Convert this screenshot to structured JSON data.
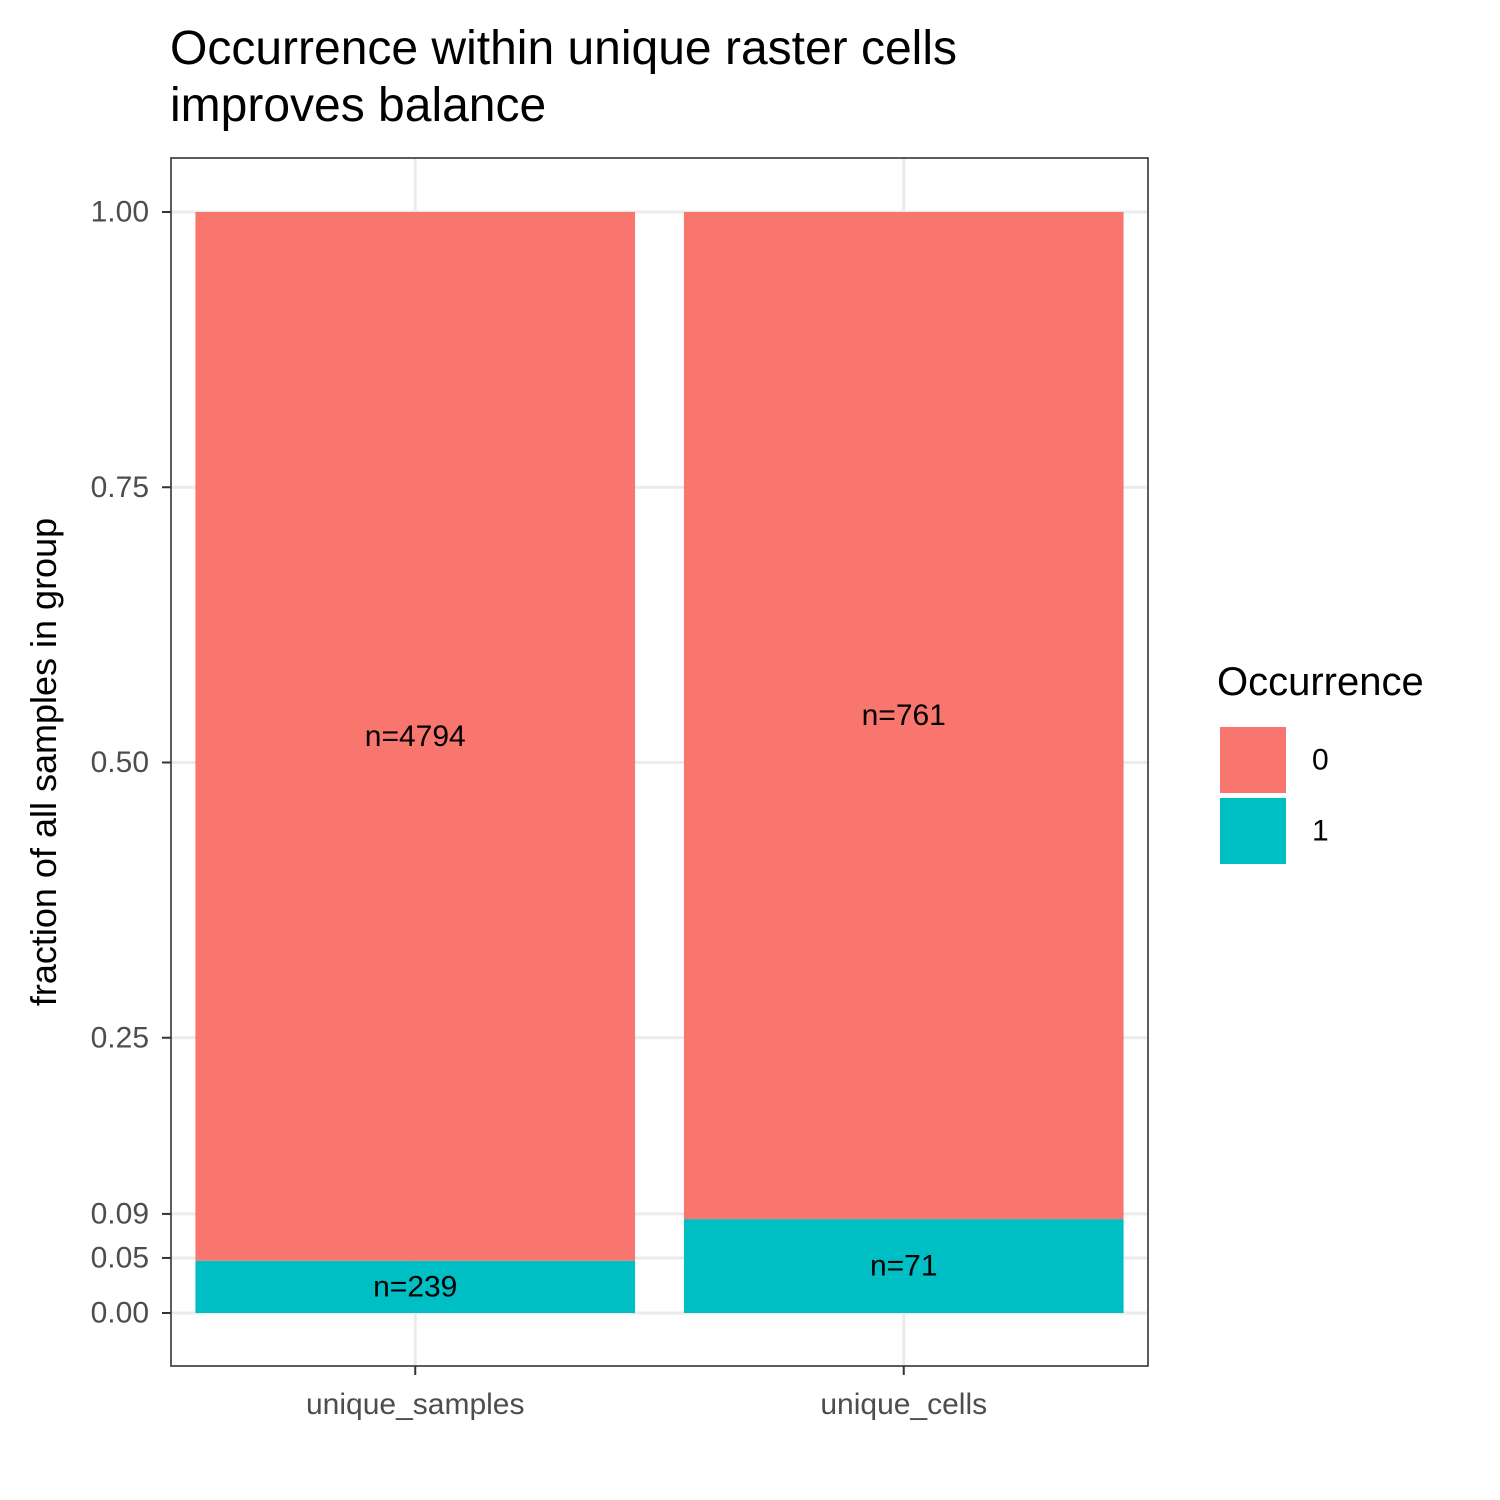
{
  "chart_data": {
    "type": "bar",
    "stacked": true,
    "title": "Occurrence within unique raster cells improves balance",
    "title_lines": [
      "Occurrence within unique raster cells",
      "improves balance"
    ],
    "xlabel": "",
    "ylabel": "fraction of all samples in group",
    "ylim": [
      -0.1,
      1.1
    ],
    "yticks": [
      0.0,
      0.05,
      0.09,
      0.25,
      0.5,
      0.75,
      1.0
    ],
    "ytick_labels": [
      "0.00",
      "0.05",
      "0.09",
      "0.25",
      "0.50",
      "0.75",
      "1.00"
    ],
    "categories": [
      "unique_samples",
      "unique_cells"
    ],
    "grid": true,
    "legend": {
      "title": "Occurrence",
      "placement": "right"
    },
    "series": [
      {
        "name": "1",
        "color": "#00BFC4",
        "values": [
          0.0475,
          0.0853
        ],
        "labels": [
          "n=239",
          "n=71"
        ]
      },
      {
        "name": "0",
        "color": "#F8766D",
        "values": [
          0.9525,
          0.9147
        ],
        "labels": [
          "n=4794",
          "n=761"
        ]
      }
    ],
    "legend_order": [
      "0",
      "1"
    ]
  }
}
